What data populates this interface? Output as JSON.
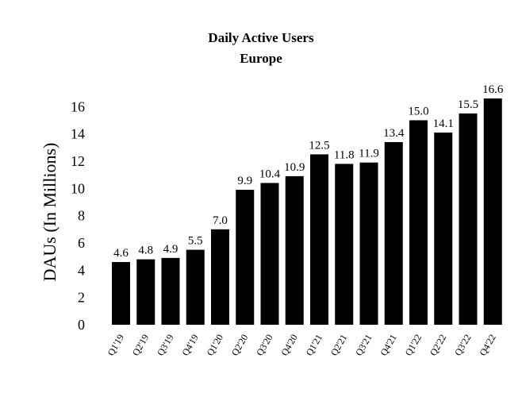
{
  "chart_data": {
    "type": "bar",
    "title": "Daily Active Users",
    "subtitle": "Europe",
    "xlabel": "",
    "ylabel": "DAUs (In Millions)",
    "ylim": [
      0,
      16.6
    ],
    "yticks": [
      0,
      2,
      4,
      6,
      8,
      10,
      12,
      14,
      16
    ],
    "grid": false,
    "bar_color": "#000000",
    "categories": [
      "Q1'19",
      "Q2'19",
      "Q3'19",
      "Q4'19",
      "Q1'20",
      "Q2'20",
      "Q3'20",
      "Q4'20",
      "Q1'21",
      "Q2'21",
      "Q3'21",
      "Q4'21",
      "Q1'22",
      "Q2'22",
      "Q3'22",
      "Q4'22"
    ],
    "values": [
      4.6,
      4.8,
      4.9,
      5.5,
      7.0,
      9.9,
      10.4,
      10.9,
      12.5,
      11.8,
      11.9,
      13.4,
      15.0,
      14.1,
      15.5,
      16.6
    ],
    "value_labels": [
      "4.6",
      "4.8",
      "4.9",
      "5.5",
      "7.0",
      "9.9",
      "10.4",
      "10.9",
      "12.5",
      "11.8",
      "11.9",
      "13.4",
      "15.0",
      "14.1",
      "15.5",
      "16.6"
    ]
  }
}
